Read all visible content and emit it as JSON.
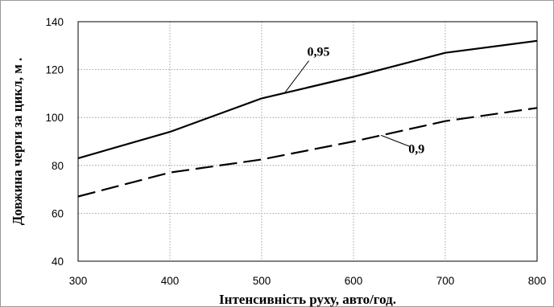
{
  "chart_data": {
    "type": "line",
    "title": "",
    "xlabel": "Інтенсивність руху, авто/год.",
    "ylabel": "Довжина черги за цикл, м .",
    "xlim": [
      300,
      800
    ],
    "ylim": [
      40,
      140
    ],
    "x_ticks": [
      300,
      400,
      500,
      600,
      700,
      800
    ],
    "y_ticks": [
      40,
      60,
      80,
      100,
      120,
      140
    ],
    "grid": true,
    "grid_style": "dotted",
    "legend": "none",
    "x": [
      300,
      400,
      500,
      600,
      700,
      800
    ],
    "series": [
      {
        "name": "0,95",
        "style": "solid",
        "color": "#000000",
        "values": [
          83,
          94,
          108,
          117,
          127,
          132
        ]
      },
      {
        "name": "0,9",
        "style": "dashed",
        "color": "#000000",
        "values": [
          67,
          77,
          82.5,
          90,
          98.5,
          104
        ]
      }
    ],
    "annotations": [
      {
        "text": "0,95",
        "series": 0,
        "at_x": 525
      },
      {
        "text": "0,9",
        "series": 1,
        "at_x": 630
      }
    ]
  }
}
